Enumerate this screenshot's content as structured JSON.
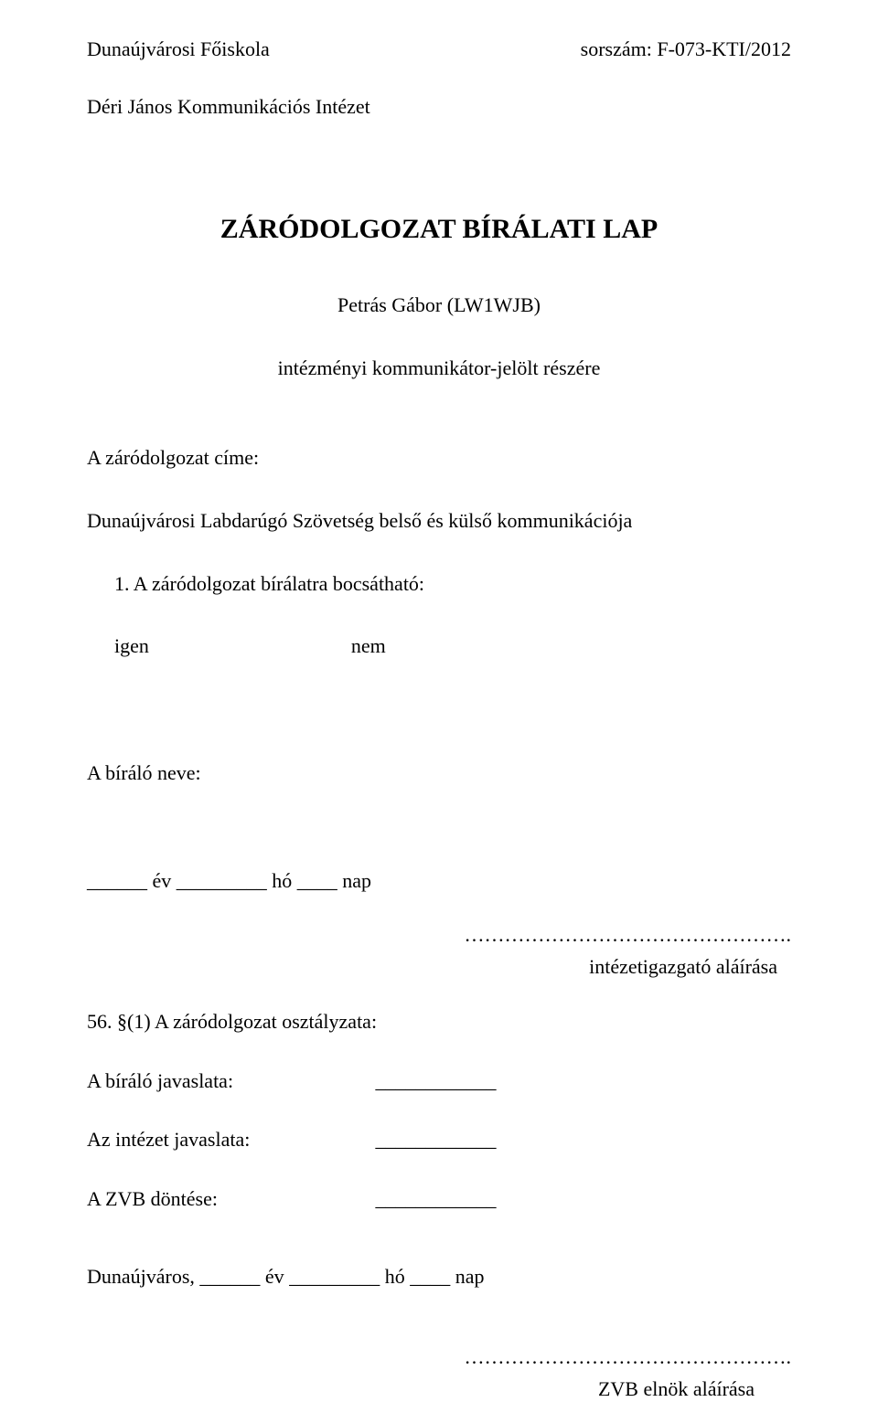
{
  "header": {
    "school": "Dunaújvárosi Főiskola",
    "serial_label": "sorszám:",
    "serial_value": "F-073-KTI/2012"
  },
  "institute": "Déri János Kommunikációs Intézet",
  "title": "ZÁRÓDOLGOZAT BÍRÁLATI LAP",
  "student": "Petrás Gábor (LW1WJB)",
  "recipient": "intézményi kommunikátor-jelölt részére",
  "thesis_title_label": "A záródolgozat címe:",
  "thesis_title_value": "Dunaújvárosi Labdarúgó Szövetség belső és külső kommunikációja",
  "q1": "1. A záródolgozat bírálatra bocsátható:",
  "yes": "igen",
  "no": "nem",
  "reviewer_label": "A bíráló neve:",
  "date_parts": {
    "ev_blank": "______",
    "ev": "év",
    "ho_blank": "_________",
    "ho": " hó",
    "nap_blank": "____",
    "nap": " nap"
  },
  "dots_right": "………………………………………….",
  "sig_director": "intézetigazgató aláírása",
  "grade_label": "56. §(1) A záródolgozat osztályzata:",
  "reviewer_suggestion_label": "A bíráló javaslata:",
  "institute_suggestion_label": "Az intézet javaslata:",
  "zvb_decision_label": "A ZVB döntése:",
  "blank_line": "____________",
  "final_date_city": "Dunaújváros, ",
  "sig_zvb": "ZVB elnök aláírása"
}
